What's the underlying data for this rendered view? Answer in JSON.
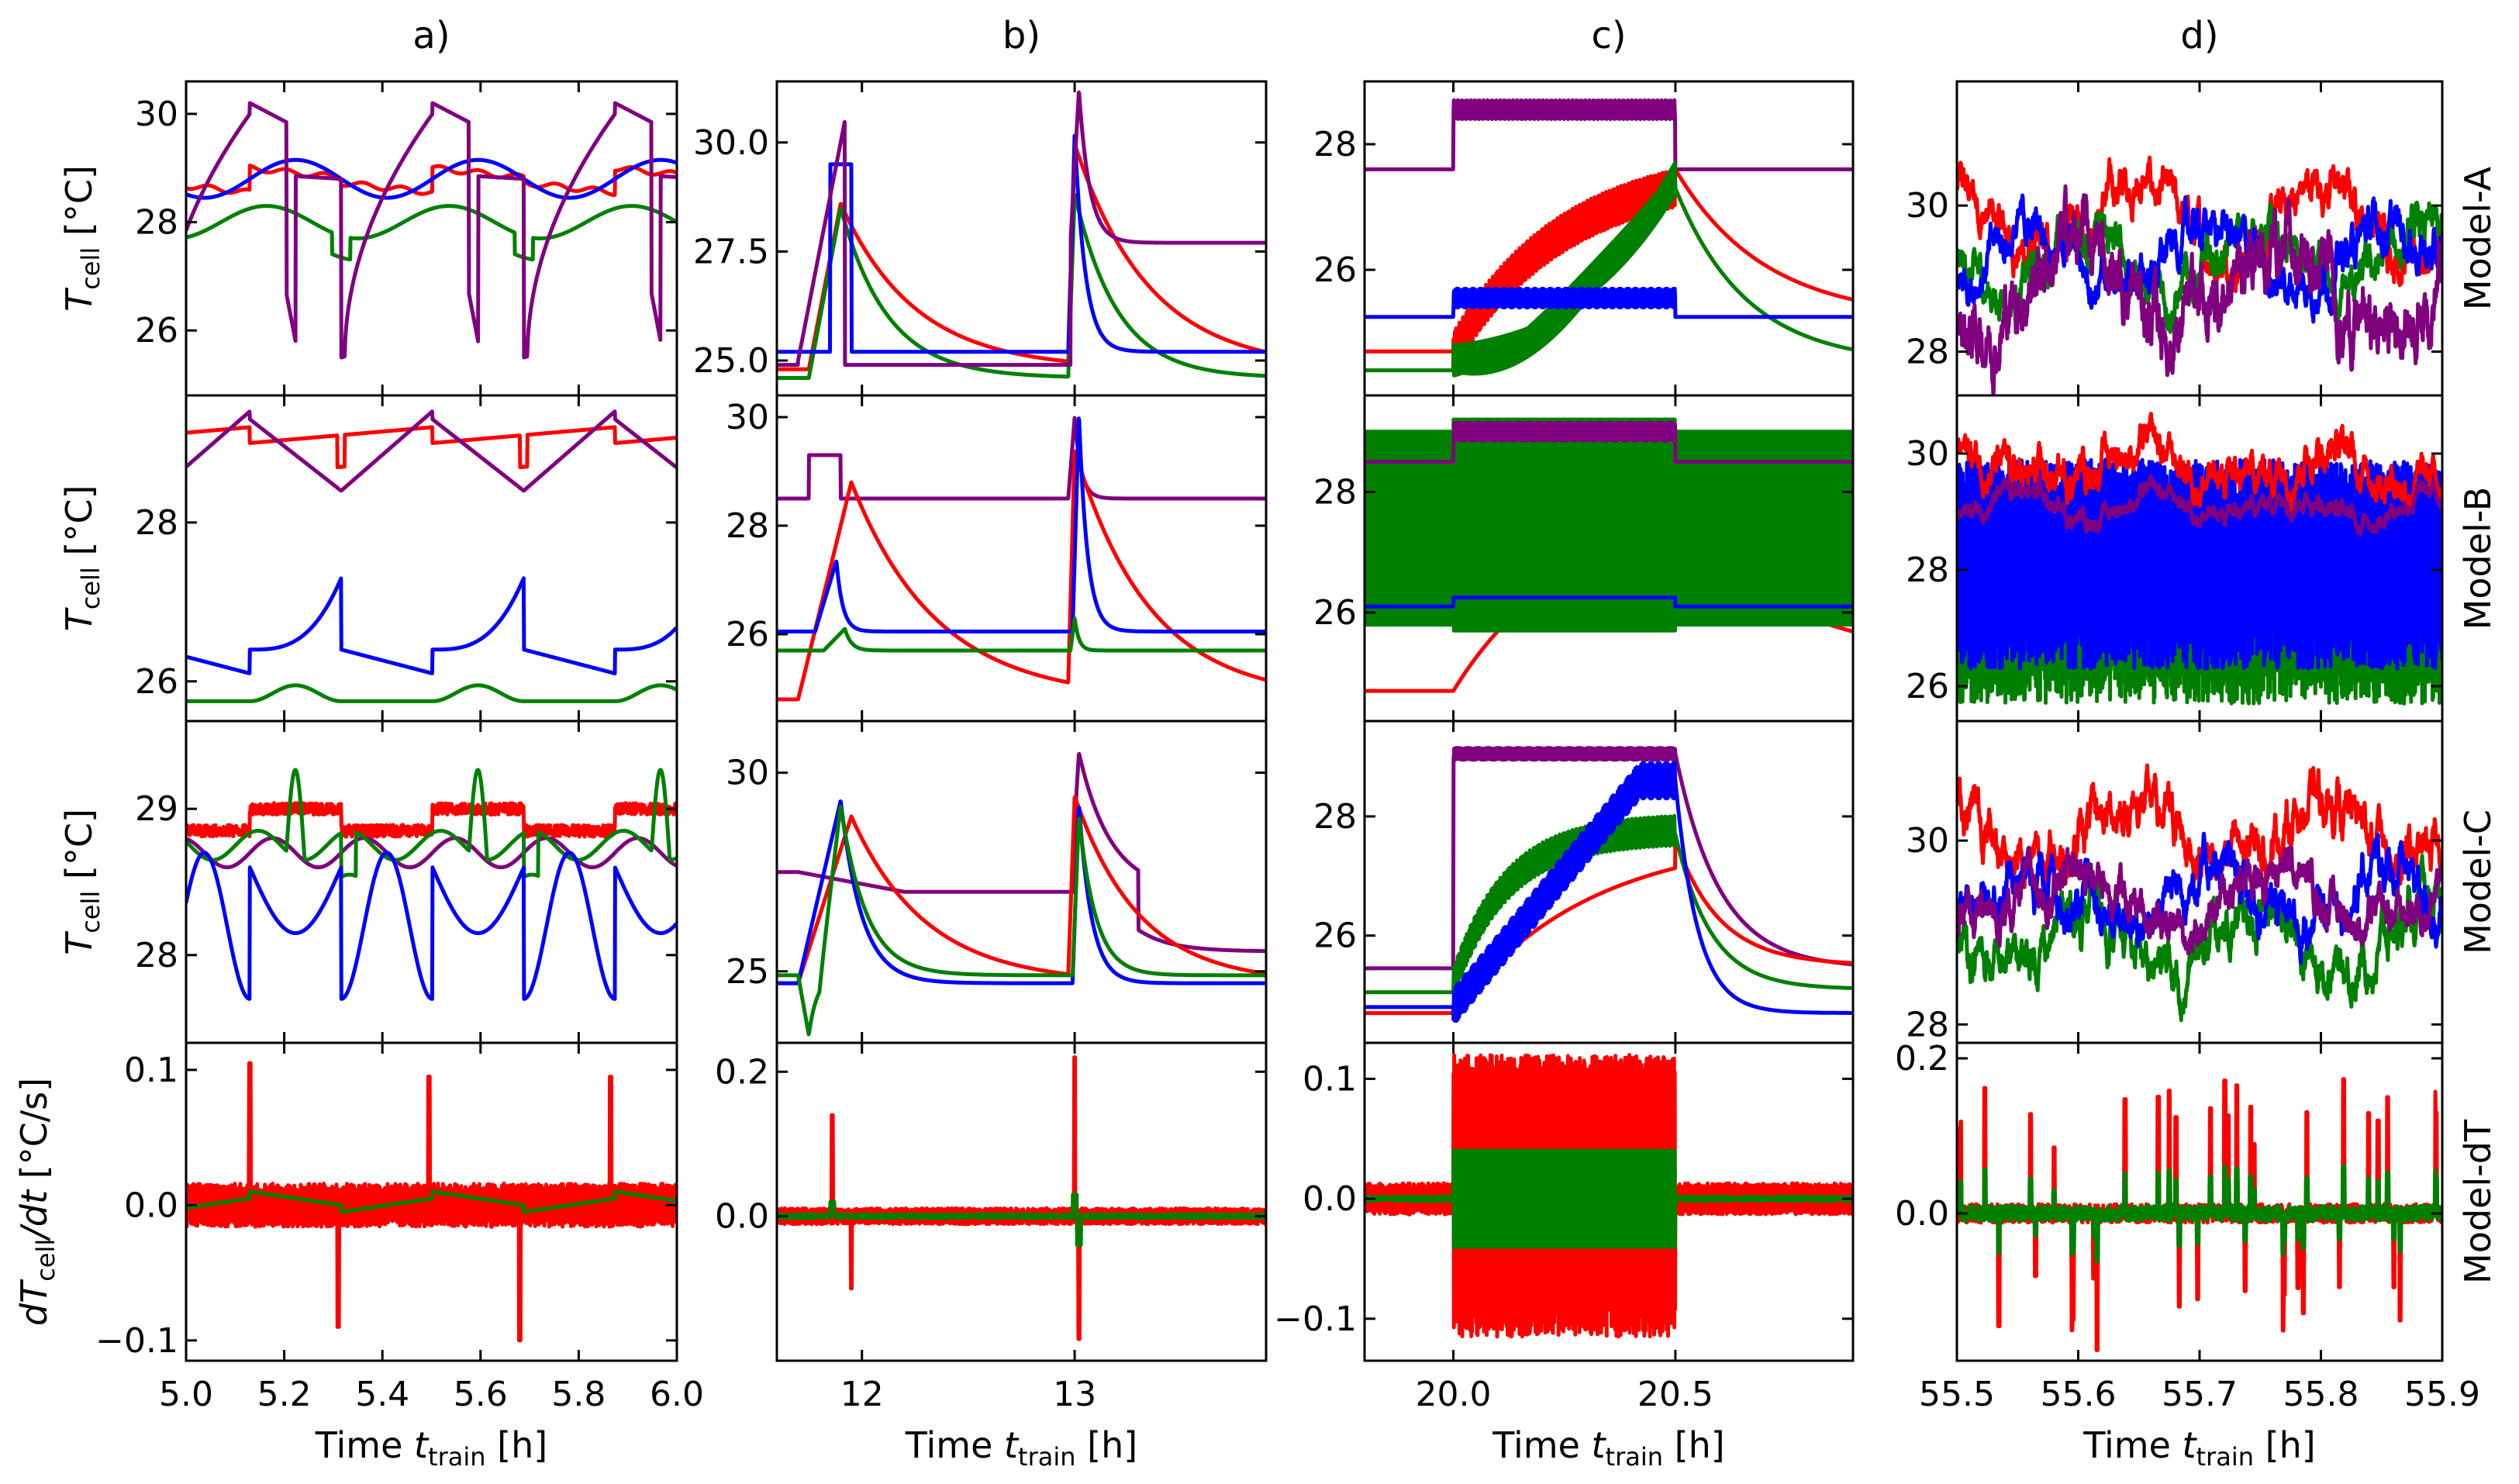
{
  "chart_data": {
    "type": "line",
    "layout": "4x4 grid of subplots",
    "colors": {
      "red": "#ff0000",
      "green": "#008000",
      "blue": "#0000ff",
      "purple": "#800080"
    },
    "column_titles": [
      "a)",
      "b)",
      "c)",
      "d)"
    ],
    "row_labels": [
      "Model-A",
      "Model-B",
      "Model-C",
      "Model-dT"
    ],
    "xlabel_main": "Time ",
    "xlabel_var": "t",
    "xlabel_sub": "train",
    "xlabel_unit": " [h]",
    "ylabel_T_main": "T",
    "ylabel_T_sub": "cell",
    "ylabel_T_unit": " [°C]",
    "ylabel_dT_prefix": "dT",
    "ylabel_dT_sub": "cell",
    "ylabel_dT_mid": "/dt",
    "ylabel_dT_unit": " [°C/s]",
    "columns": [
      {
        "xlim": [
          5.0,
          6.0
        ],
        "xticks": [
          5.0,
          5.2,
          5.4,
          5.6,
          5.8,
          6.0
        ],
        "xtick_labels": [
          "5.0",
          "5.2",
          "5.4",
          "5.6",
          "5.8",
          "6.0"
        ]
      },
      {
        "xlim": [
          11.6,
          13.9
        ],
        "xticks": [
          12,
          13
        ],
        "xtick_labels": [
          "12",
          "13"
        ]
      },
      {
        "xlim": [
          19.8,
          20.9
        ],
        "xticks": [
          20.0,
          20.5
        ],
        "xtick_labels": [
          "20.0",
          "20.5"
        ]
      },
      {
        "xlim": [
          55.5,
          55.9
        ],
        "xticks": [
          55.5,
          55.6,
          55.7,
          55.8,
          55.9
        ],
        "xtick_labels": [
          "55.5",
          "55.6",
          "55.7",
          "55.8",
          "55.9"
        ]
      }
    ],
    "panels": [
      {
        "row": 0,
        "col": 0,
        "ylim": [
          24.8,
          30.6
        ],
        "yticks": [
          26,
          28,
          30
        ],
        "ytick_labels": [
          "26",
          "28",
          "30"
        ],
        "pattern": "A-a"
      },
      {
        "row": 0,
        "col": 1,
        "ylim": [
          24.2,
          31.4
        ],
        "yticks": [
          25.0,
          27.5,
          30.0
        ],
        "ytick_labels": [
          "25.0",
          "27.5",
          "30.0"
        ],
        "pattern": "A-b"
      },
      {
        "row": 0,
        "col": 2,
        "ylim": [
          24.0,
          29.0
        ],
        "yticks": [
          26,
          28
        ],
        "ytick_labels": [
          "26",
          "28"
        ],
        "pattern": "A-c"
      },
      {
        "row": 0,
        "col": 3,
        "ylim": [
          27.4,
          31.7
        ],
        "yticks": [
          28,
          30
        ],
        "ytick_labels": [
          "28",
          "30"
        ],
        "pattern": "A-d"
      },
      {
        "row": 1,
        "col": 0,
        "ylim": [
          25.5,
          29.6
        ],
        "yticks": [
          26,
          28
        ],
        "ytick_labels": [
          "26",
          "28"
        ],
        "pattern": "B-a"
      },
      {
        "row": 1,
        "col": 1,
        "ylim": [
          24.4,
          30.4
        ],
        "yticks": [
          26,
          28,
          30
        ],
        "ytick_labels": [
          "26",
          "28",
          "30"
        ],
        "pattern": "B-b"
      },
      {
        "row": 1,
        "col": 2,
        "ylim": [
          24.2,
          29.6
        ],
        "yticks": [
          26,
          28
        ],
        "ytick_labels": [
          "26",
          "28"
        ],
        "pattern": "B-c"
      },
      {
        "row": 1,
        "col": 3,
        "ylim": [
          25.4,
          31.0
        ],
        "yticks": [
          26,
          28,
          30
        ],
        "ytick_labels": [
          "26",
          "28",
          "30"
        ],
        "pattern": "B-d"
      },
      {
        "row": 2,
        "col": 0,
        "ylim": [
          27.4,
          29.6
        ],
        "yticks": [
          28,
          29
        ],
        "ytick_labels": [
          "28",
          "29"
        ],
        "pattern": "C-a"
      },
      {
        "row": 2,
        "col": 1,
        "ylim": [
          23.2,
          31.3
        ],
        "yticks": [
          25,
          30
        ],
        "ytick_labels": [
          "25",
          "30"
        ],
        "pattern": "C-b"
      },
      {
        "row": 2,
        "col": 2,
        "ylim": [
          24.2,
          29.6
        ],
        "yticks": [
          26,
          28
        ],
        "ytick_labels": [
          "26",
          "28"
        ],
        "pattern": "C-c"
      },
      {
        "row": 2,
        "col": 3,
        "ylim": [
          27.8,
          31.3
        ],
        "yticks": [
          28,
          30
        ],
        "ytick_labels": [
          "28",
          "30"
        ],
        "pattern": "C-d"
      },
      {
        "row": 3,
        "col": 0,
        "ylim": [
          -0.115,
          0.12
        ],
        "yticks": [
          -0.1,
          0.0,
          0.1
        ],
        "ytick_labels": [
          "−0.1",
          "0.0",
          "0.1"
        ],
        "pattern": "D-a"
      },
      {
        "row": 3,
        "col": 1,
        "ylim": [
          -0.2,
          0.24
        ],
        "yticks": [
          0.0,
          0.2
        ],
        "ytick_labels": [
          "0.0",
          "0.2"
        ],
        "pattern": "D-b"
      },
      {
        "row": 3,
        "col": 2,
        "ylim": [
          -0.135,
          0.13
        ],
        "yticks": [
          -0.1,
          0.0,
          0.1
        ],
        "ytick_labels": [
          "−0.1",
          "0.0",
          "0.1"
        ],
        "pattern": "D-c"
      },
      {
        "row": 3,
        "col": 3,
        "ylim": [
          -0.19,
          0.22
        ],
        "yticks": [
          0.0,
          0.2
        ],
        "ytick_labels": [
          "0.0",
          "0.2"
        ],
        "pattern": "D-d"
      }
    ]
  }
}
